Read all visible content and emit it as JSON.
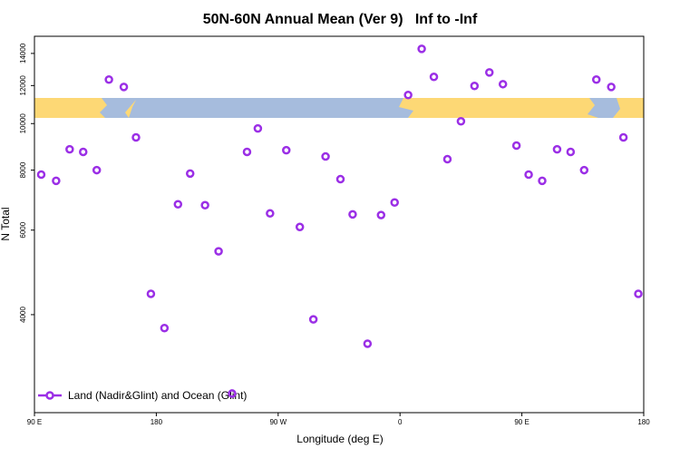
{
  "chart_data": {
    "type": "scatter",
    "title": "50N-60N Annual Mean (Ver 9)   Inf to -Inf",
    "x_label": "Longitude (deg E)",
    "y_label": "N Total",
    "xlim": [
      90,
      540
    ],
    "xticks": [
      {
        "value": 90,
        "label": "90 E"
      },
      180,
      {
        "value": 270,
        "label": "90 W"
      },
      {
        "value": 360,
        "label": "0"
      },
      {
        "value": 450,
        "label": "90 E"
      },
      {
        "value": 540,
        "label": "180"
      }
    ],
    "ylim": [
      2500,
      15200
    ],
    "yticks": [
      4000,
      6000,
      8000,
      10000,
      12000,
      14000
    ],
    "log_y": true,
    "grid": false,
    "legend": "bottom-left",
    "series": [
      {
        "name": "Land (Nadir&Glint) and Ocean (Glint)",
        "color": "#9b2fe6",
        "x": [
          95,
          106,
          116,
          126,
          136,
          145,
          156,
          165,
          176,
          186,
          196,
          205,
          216,
          226,
          236,
          247,
          255,
          264,
          276,
          286,
          296,
          305,
          316,
          325,
          336,
          346,
          356,
          366,
          376,
          385,
          395,
          405,
          415,
          426,
          436,
          446,
          455,
          465,
          476,
          486,
          496,
          505,
          516,
          525,
          536
        ],
        "values": [
          7830,
          7600,
          8840,
          8730,
          8000,
          12350,
          11920,
          9360,
          4420,
          3750,
          6790,
          7870,
          6760,
          5420,
          2740,
          8730,
          9770,
          6500,
          8800,
          6090,
          3910,
          8540,
          7660,
          6470,
          3480,
          6450,
          6850,
          11470,
          14310,
          12510,
          8430,
          10110,
          11980,
          12780,
          12080,
          9000,
          7830,
          7600,
          8840,
          8730,
          8000,
          12350,
          11920,
          9360,
          4420
        ]
      }
    ]
  }
}
